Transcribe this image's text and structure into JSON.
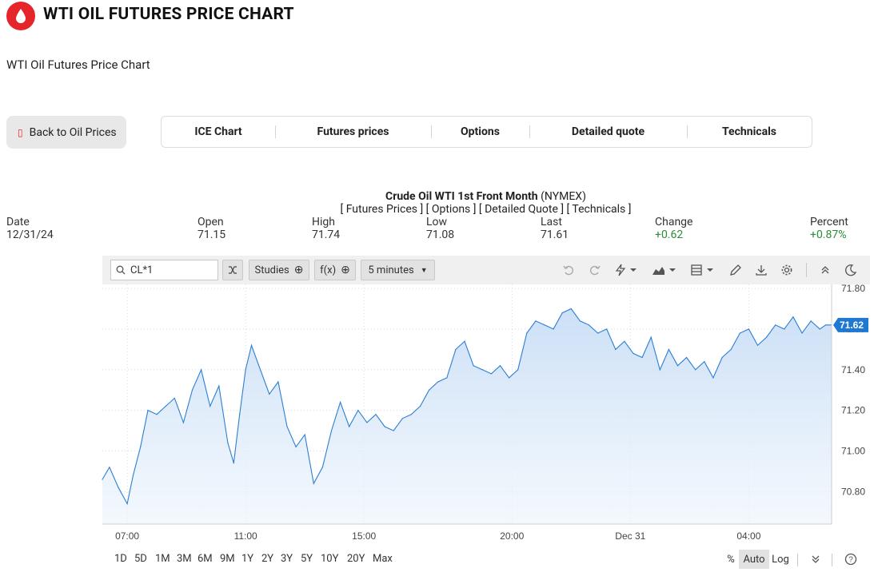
{
  "header": {
    "title": "WTI OIL FUTURES PRICE CHART",
    "subtitle": "WTI Oil Futures Price Chart",
    "icon": "oil-drop-icon",
    "brand_color": "#e5252a"
  },
  "back_button": {
    "label": "Back to Oil Prices",
    "icon": "back-icon"
  },
  "tabs": [
    {
      "label": "ICE Chart"
    },
    {
      "label": "Futures prices"
    },
    {
      "label": "Options"
    },
    {
      "label": "Detailed quote"
    },
    {
      "label": "Technicals"
    }
  ],
  "quote": {
    "name": "Crude Oil WTI 1st Front Month",
    "exchange": "(NYMEX)",
    "links": "[ Futures Prices ] [ Options ] [ Detailed Quote ] [ Technicals ]",
    "date_label": "Date",
    "date": "12/31/24",
    "open_label": "Open",
    "open": "71.15",
    "high_label": "High",
    "high": "71.74",
    "low_label": "Low",
    "low": "71.08",
    "last_label": "Last",
    "last": "71.61",
    "change_label": "Change",
    "change": "+0.62",
    "percent_label": "Percent",
    "percent": "+0.87%",
    "positive_color": "#2e8b3a"
  },
  "toolbar": {
    "symbol": "CL*1",
    "studies_label": "Studies",
    "fx_label": "f(x)",
    "interval_label": "5 minutes",
    "icons": [
      "search-icon",
      "compare-icon",
      "plus-circle-icon",
      "chevron-down-icon",
      "undo-icon",
      "redo-icon",
      "lightning-icon",
      "area-chart-icon",
      "template-icon",
      "draw-icon",
      "download-icon",
      "gear-icon",
      "collapse-icon",
      "dark-mode-icon"
    ]
  },
  "range_bar": {
    "ranges": [
      "1D",
      "5D",
      "1M",
      "3M",
      "6M",
      "9M",
      "1Y",
      "2Y",
      "3Y",
      "5Y",
      "10Y",
      "20Y",
      "Max"
    ],
    "percent_label": "%",
    "auto_label": "Auto",
    "log_label": "Log",
    "active": "Auto"
  },
  "chart_data": {
    "type": "area",
    "series_color": "#2b7fd4",
    "fill_color": "#cfe3f7",
    "last_value_label": "71.62",
    "ylim": [
      70.64,
      71.82
    ],
    "y_ticks": [
      "71.80",
      "71.60",
      "71.40",
      "71.20",
      "71.00",
      "70.80"
    ],
    "y_tick_values": [
      71.8,
      71.6,
      71.4,
      71.2,
      71.0,
      70.8
    ],
    "x_ticks": [
      "07:00",
      "11:00",
      "15:00",
      "20:00",
      "Dec 31",
      "04:00"
    ],
    "x_tick_hours": [
      7,
      11,
      15,
      20,
      24,
      28
    ],
    "x_domain_hours": [
      6.16,
      30.8
    ],
    "x_hours": [
      6.16,
      6.4,
      6.7,
      7.0,
      7.2,
      7.45,
      7.7,
      8.0,
      8.3,
      8.6,
      8.9,
      9.2,
      9.5,
      9.8,
      10.1,
      10.4,
      10.6,
      10.8,
      11.0,
      11.2,
      11.5,
      11.8,
      12.1,
      12.4,
      12.7,
      13.0,
      13.3,
      13.6,
      13.9,
      14.2,
      14.5,
      14.8,
      15.1,
      15.4,
      15.7,
      16.0,
      16.3,
      16.6,
      16.9,
      17.2,
      17.5,
      17.8,
      18.1,
      18.4,
      18.7,
      19.0,
      19.3,
      19.6,
      19.9,
      20.2,
      20.5,
      20.8,
      21.1,
      21.4,
      21.7,
      22.0,
      22.3,
      22.6,
      22.9,
      23.2,
      23.5,
      23.8,
      24.1,
      24.4,
      24.7,
      25.0,
      25.3,
      25.6,
      25.9,
      26.2,
      26.5,
      26.8,
      27.1,
      27.4,
      27.7,
      28.0,
      28.3,
      28.6,
      28.9,
      29.2,
      29.5,
      29.8,
      30.1,
      30.4,
      30.6,
      30.8
    ],
    "values": [
      70.86,
      70.92,
      70.82,
      70.74,
      70.88,
      71.02,
      71.2,
      71.18,
      71.22,
      71.26,
      71.14,
      71.3,
      71.4,
      71.22,
      71.32,
      71.04,
      70.94,
      71.18,
      71.4,
      71.52,
      71.4,
      71.28,
      71.34,
      71.12,
      71.02,
      71.08,
      70.84,
      70.92,
      71.1,
      71.24,
      71.12,
      71.2,
      71.14,
      71.18,
      71.12,
      71.1,
      71.16,
      71.18,
      71.22,
      71.3,
      71.34,
      71.36,
      71.5,
      71.54,
      71.42,
      71.4,
      71.38,
      71.42,
      71.36,
      71.4,
      71.58,
      71.64,
      71.62,
      71.6,
      71.68,
      71.7,
      71.64,
      71.62,
      71.58,
      71.6,
      71.5,
      71.54,
      71.48,
      71.46,
      71.56,
      71.4,
      71.5,
      71.42,
      71.46,
      71.4,
      71.44,
      71.36,
      71.46,
      71.5,
      71.58,
      71.6,
      71.52,
      71.56,
      71.62,
      71.6,
      71.66,
      71.58,
      71.64,
      71.6,
      71.62,
      71.62
    ]
  }
}
